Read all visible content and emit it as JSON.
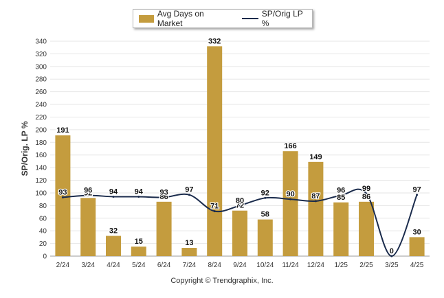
{
  "legend": {
    "series1": "Avg Days on Market",
    "series2": "SP/Orig LP %"
  },
  "copyright": "Copyright © Trendgraphix, Inc.",
  "colors": {
    "bar": "#c49c3e",
    "line": "#1a2b4c",
    "grid": "#e6e6e6"
  },
  "chart_data": {
    "type": "bar",
    "categories": [
      "2/24",
      "3/24",
      "4/24",
      "5/24",
      "6/24",
      "7/24",
      "8/24",
      "9/24",
      "10/24",
      "11/24",
      "12/24",
      "1/25",
      "2/25",
      "3/25",
      "4/25"
    ],
    "series": [
      {
        "name": "Avg Days on Market",
        "type": "bar",
        "values": [
          191,
          92,
          32,
          15,
          86,
          13,
          332,
          72,
          58,
          166,
          149,
          85,
          86,
          0,
          30
        ]
      },
      {
        "name": "SP/Orig LP %",
        "type": "line",
        "values": [
          93,
          96,
          94,
          94,
          93,
          97,
          71,
          80,
          92,
          90,
          87,
          96,
          99,
          0,
          97
        ]
      }
    ],
    "ylabel": "SP/Orig. LP %",
    "ylim": [
      0,
      340
    ],
    "yticks": [
      0,
      20,
      40,
      60,
      80,
      100,
      120,
      140,
      160,
      180,
      200,
      220,
      240,
      260,
      280,
      300,
      320,
      340
    ],
    "grid": true,
    "legend_position": "top"
  }
}
